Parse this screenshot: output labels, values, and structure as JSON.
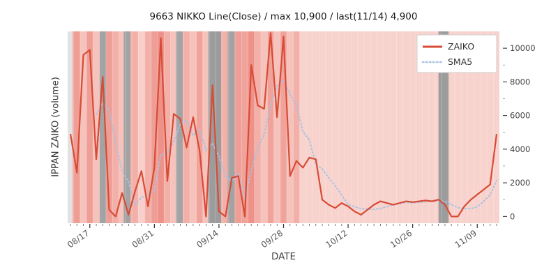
{
  "figure": {
    "title": "9663 NIKKO Line(Close) / max 10,900 / last(11/14) 4,900",
    "xlabel": "DATE",
    "ylabel": "IPPAN ZAIKO (volume)"
  },
  "chart_data": {
    "type": "line",
    "title": "9663 NIKKO Line(Close) / max 10,900 / last(11/14) 4,900",
    "xlabel": "DATE",
    "ylabel": "IPPAN ZAIKO (volume)",
    "max_value": 10900,
    "last_date": "11/14",
    "last_value": 4900,
    "ylim": [
      -400,
      11000
    ],
    "yticks": [
      0,
      2000,
      4000,
      6000,
      8000,
      10000
    ],
    "xtick_indices": [
      3,
      13,
      23,
      33,
      43,
      53,
      63
    ],
    "xtick_labels": [
      "08/17",
      "08/31",
      "09/14",
      "09/28",
      "10/12",
      "10/26",
      "11/09"
    ],
    "legend": {
      "position": "upper right",
      "entries": [
        "ZAIKO",
        "SMA5"
      ]
    },
    "x": [
      "08/14",
      "08/15",
      "08/16",
      "08/17",
      "08/18",
      "08/21",
      "08/22",
      "08/23",
      "08/24",
      "08/25",
      "08/28",
      "08/29",
      "08/30",
      "08/31",
      "09/01",
      "09/04",
      "09/05",
      "09/06",
      "09/07",
      "09/08",
      "09/11",
      "09/12",
      "09/13",
      "09/14",
      "09/15",
      "09/18",
      "09/19",
      "09/20",
      "09/21",
      "09/22",
      "09/25",
      "09/26",
      "09/27",
      "09/28",
      "09/29",
      "10/02",
      "10/03",
      "10/04",
      "10/05",
      "10/06",
      "10/09",
      "10/10",
      "10/11",
      "10/12",
      "10/13",
      "10/16",
      "10/17",
      "10/18",
      "10/19",
      "10/20",
      "10/23",
      "10/24",
      "10/25",
      "10/26",
      "10/27",
      "10/30",
      "10/31",
      "11/01",
      "11/02",
      "11/03",
      "11/06",
      "11/07",
      "11/08",
      "11/09",
      "11/10",
      "11/13",
      "11/14"
    ],
    "series": [
      {
        "name": "ZAIKO",
        "color": "#d84b35",
        "style": "solid",
        "values": [
          4900,
          2600,
          9600,
          9900,
          3400,
          8300,
          400,
          0,
          1400,
          100,
          1500,
          2700,
          600,
          2900,
          10600,
          2100,
          6100,
          5800,
          4100,
          5900,
          3900,
          0,
          7800,
          300,
          0,
          2300,
          2400,
          0,
          9000,
          6600,
          6400,
          10900,
          5900,
          10700,
          2400,
          3300,
          2900,
          3500,
          3400,
          1000,
          700,
          500,
          800,
          600,
          300,
          100,
          400,
          700,
          900,
          800,
          700,
          800,
          900,
          850,
          900,
          950,
          900,
          1000,
          700,
          0,
          0,
          600,
          1000,
          1300,
          1600,
          1900,
          4900
        ]
      },
      {
        "name": "SMA5",
        "color": "#a6c3e3",
        "style": "dotted",
        "derived": "5-period moving average of ZAIKO",
        "values": [
          null,
          null,
          null,
          null,
          6080,
          6760,
          6320,
          4400,
          2700,
          2040,
          680,
          1140,
          1260,
          1560,
          3660,
          3780,
          4460,
          5500,
          5740,
          4800,
          5160,
          3940,
          4340,
          3580,
          2400,
          2080,
          2560,
          1000,
          2740,
          4060,
          4880,
          6580,
          7760,
          8100,
          7260,
          6640,
          5040,
          4560,
          3100,
          2820,
          2300,
          1820,
          1280,
          720,
          580,
          460,
          440,
          420,
          480,
          580,
          700,
          780,
          820,
          810,
          830,
          880,
          900,
          920,
          890,
          710,
          520,
          460,
          460,
          580,
          900,
          1280,
          2140
        ]
      }
    ],
    "background_bands": [
      [
        -0.6,
        0.35,
        "#e3e1e1"
      ],
      [
        0.35,
        1.5,
        "#ef9e96"
      ],
      [
        1.5,
        2.5,
        "#f6c2bc"
      ],
      [
        2.5,
        3.5,
        "#ef9e96"
      ],
      [
        3.5,
        4.5,
        "#f6c2bc"
      ],
      [
        4.5,
        5.55,
        "#a3a3a3"
      ],
      [
        5.55,
        6.5,
        "#ef9e96"
      ],
      [
        6.5,
        7.5,
        "#f3b0a9"
      ],
      [
        7.5,
        8.25,
        "#f6c2bc"
      ],
      [
        8.25,
        9.3,
        "#a3a3a3"
      ],
      [
        9.3,
        10.5,
        "#f3b0a9"
      ],
      [
        10.5,
        11.5,
        "#f8cfca"
      ],
      [
        11.5,
        12.5,
        "#f3b0a9"
      ],
      [
        12.5,
        13.5,
        "#ef9e96"
      ],
      [
        13.5,
        14.5,
        "#ee9189"
      ],
      [
        14.5,
        15.5,
        "#f3b0a9"
      ],
      [
        15.5,
        16.35,
        "#f6c2bc"
      ],
      [
        16.35,
        17.4,
        "#a3a3a3"
      ],
      [
        17.4,
        18.5,
        "#f3b0a9"
      ],
      [
        18.5,
        19.5,
        "#f6c2bc"
      ],
      [
        19.5,
        20.5,
        "#f0a39b"
      ],
      [
        20.5,
        21.35,
        "#f6c2bc"
      ],
      [
        21.35,
        23.35,
        "#9c9c9c"
      ],
      [
        23.35,
        24.35,
        "#f3b0a9"
      ],
      [
        24.35,
        25.45,
        "#a3a3a3"
      ],
      [
        25.45,
        26.5,
        "#ef9e96"
      ],
      [
        26.5,
        27.5,
        "#f0a39b"
      ],
      [
        27.5,
        28.5,
        "#ee9189"
      ],
      [
        28.5,
        29.5,
        "#f3b0a9"
      ],
      [
        29.5,
        30.5,
        "#f6c2bc"
      ],
      [
        30.5,
        31.5,
        "#f0a39b"
      ],
      [
        31.5,
        32.5,
        "#f6c2bc"
      ],
      [
        32.5,
        33.5,
        "#f0a39b"
      ],
      [
        33.5,
        34.5,
        "#f6c2bc"
      ],
      [
        34.5,
        35.5,
        "#f3b0a9"
      ],
      [
        35.5,
        57.0,
        "#f8d2cd"
      ],
      [
        57.0,
        58.6,
        "#9c9c9c"
      ],
      [
        58.6,
        66.4,
        "#f8d2cd"
      ],
      [
        66.4,
        67.2,
        "#ece2e0"
      ]
    ],
    "colors": {
      "zaiko_line": "#d84b35",
      "sma5_line": "#a6c3e3",
      "plot_background": "#f8d2cd",
      "holiday_band": "#9c9c9c",
      "tick_text": "#555555"
    }
  }
}
